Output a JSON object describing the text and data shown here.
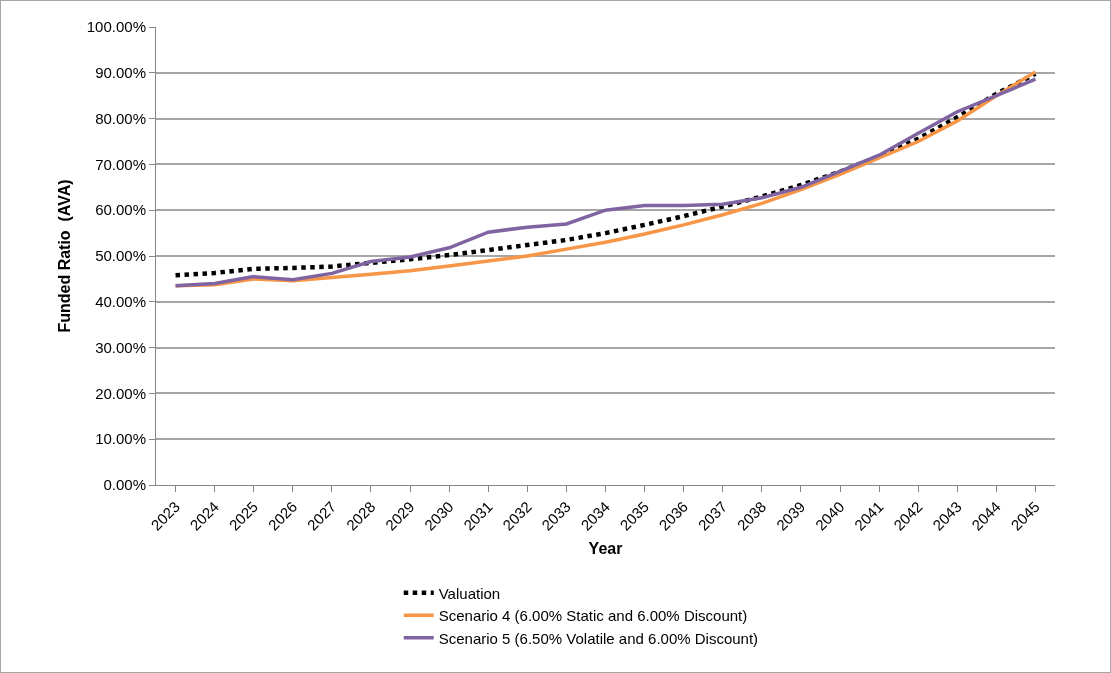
{
  "chart_data": {
    "type": "line",
    "xlabel": "Year",
    "ylabel": "Funded Ratio  (AVA)",
    "categories": [
      "2023",
      "2024",
      "2025",
      "2026",
      "2027",
      "2028",
      "2029",
      "2030",
      "2031",
      "2032",
      "2033",
      "2034",
      "2035",
      "2036",
      "2037",
      "2038",
      "2039",
      "2040",
      "2041",
      "2042",
      "2043",
      "2044",
      "2045"
    ],
    "series": [
      {
        "name": "Valuation",
        "color": "#000000",
        "line_style": "dotted",
        "values": [
          45.8,
          46.3,
          47.2,
          47.4,
          47.7,
          48.5,
          49.3,
          50.2,
          51.3,
          52.4,
          53.5,
          55.0,
          56.8,
          58.7,
          60.8,
          63.0,
          65.5,
          68.4,
          71.8,
          75.6,
          80.3,
          85.4,
          89.8
        ]
      },
      {
        "name": "Scenario 4 (6.00% Static and 6.00% Discount)",
        "color": "#f79646",
        "line_style": "solid",
        "values": [
          43.5,
          43.7,
          45.0,
          44.6,
          45.3,
          46.0,
          46.8,
          47.8,
          48.9,
          50.0,
          51.5,
          53.0,
          54.8,
          56.8,
          59.0,
          61.5,
          64.5,
          67.8,
          71.4,
          75.0,
          79.5,
          85.0,
          90.2
        ]
      },
      {
        "name": "Scenario 5 (6.50% Volatile and 6.00% Discount)",
        "color": "#8064a2",
        "line_style": "solid",
        "values": [
          43.5,
          44.0,
          45.5,
          44.8,
          46.2,
          48.8,
          49.8,
          51.8,
          55.2,
          56.3,
          57.0,
          60.0,
          61.0,
          61.0,
          61.3,
          62.7,
          65.0,
          68.5,
          72.0,
          76.8,
          81.5,
          85.0,
          88.6
        ]
      }
    ],
    "ylim": [
      0,
      100
    ],
    "yticks": [
      {
        "value": 0,
        "label": "0.00%"
      },
      {
        "value": 10,
        "label": "10.00%"
      },
      {
        "value": 20,
        "label": "20.00%"
      },
      {
        "value": 30,
        "label": "30.00%"
      },
      {
        "value": 40,
        "label": "40.00%"
      },
      {
        "value": 50,
        "label": "50.00%"
      },
      {
        "value": 60,
        "label": "60.00%"
      },
      {
        "value": 70,
        "label": "70.00%"
      },
      {
        "value": 80,
        "label": "80.00%"
      },
      {
        "value": 90,
        "label": "90.00%"
      },
      {
        "value": 100,
        "label": "100.00%"
      }
    ],
    "grid": "y",
    "legend": "bottom",
    "marker": "none"
  }
}
